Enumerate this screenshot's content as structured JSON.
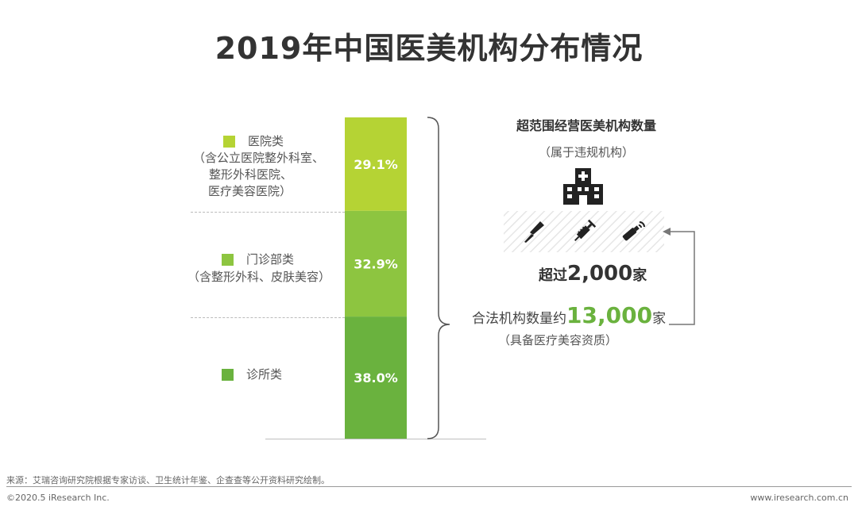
{
  "page": {
    "title": "2019年中国医美机构分布情况",
    "source": "来源：艾瑞咨询研究院根据专家访谈、卫生统计年鉴、企查查等公开资料研究绘制。",
    "copyright": "©2020.5 iResearch Inc.",
    "website": "www.iresearch.com.cn"
  },
  "chart_data": {
    "type": "bar",
    "stacked": true,
    "categories": [
      "医院类",
      "门诊部类",
      "诊所类"
    ],
    "values": [
      29.1,
      32.9,
      38.0
    ],
    "value_labels": [
      "29.1%",
      "32.9%",
      "38.0%"
    ],
    "colors": [
      "#b5d334",
      "#8dc540",
      "#6ab23e"
    ],
    "notes": [
      "（含公立医院整外科室、",
      "整形外科医院、",
      "医疗美容医院）",
      "（含整形外科、皮肤美容）"
    ],
    "ylim": [
      0,
      100
    ]
  },
  "labels": {
    "hospital_name": "医院类",
    "hospital_note_1": "（含公立医院整外科室、",
    "hospital_note_2": "整形外科医院、",
    "hospital_note_3": "医疗美容医院）",
    "clinic_dept_name": "门诊部类",
    "clinic_dept_note": "（含整形外科、皮肤美容）",
    "clinic_name": "诊所类"
  },
  "right": {
    "heading": "超范围经营医美机构数量",
    "subheading": "（属于违规机构）",
    "over_prefix": "超过",
    "over_number": "2,000",
    "over_suffix": "家",
    "legal_prefix": "合法机构数量约",
    "legal_number": "13,000",
    "legal_suffix": "家",
    "legal_note": "（具备医疗美容资质）"
  },
  "icons": [
    "hospital-icon",
    "scalpel-icon",
    "syringe-icon",
    "laser-device-icon"
  ]
}
